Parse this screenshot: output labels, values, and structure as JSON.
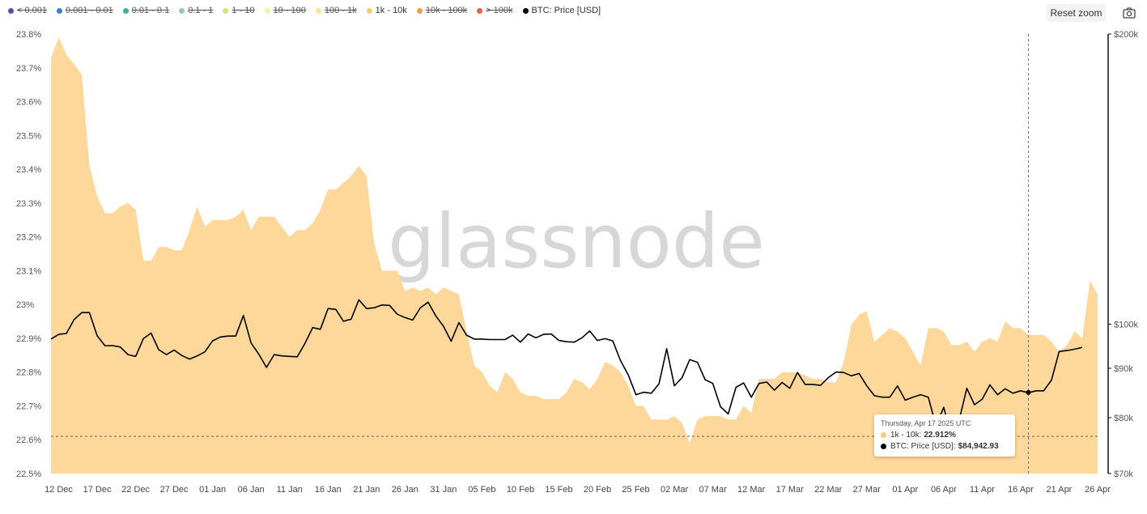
{
  "legend": [
    {
      "label": "< 0.001",
      "color": "#5b4e9e",
      "active": false
    },
    {
      "label": "0.001 - 0.01",
      "color": "#3f7fc1",
      "active": false
    },
    {
      "label": "0.01 - 0.1",
      "color": "#40b0a6",
      "active": false
    },
    {
      "label": "0.1 - 1",
      "color": "#8fd0a2",
      "active": false
    },
    {
      "label": "1 - 10",
      "color": "#c8e58c",
      "active": false
    },
    {
      "label": "10 - 100",
      "color": "#f3f2a0",
      "active": false
    },
    {
      "label": "100 - 1k",
      "color": "#fbe38e",
      "active": false
    },
    {
      "label": "1k - 10k",
      "color": "#fbc97a",
      "active": true
    },
    {
      "label": "10k - 100k",
      "color": "#f29a4d",
      "active": false
    },
    {
      "label": "> 100k",
      "color": "#e4604a",
      "active": false
    },
    {
      "label": "BTC: Price [USD]",
      "color": "#000000",
      "active": true
    }
  ],
  "toolbar": {
    "reset_zoom_label": "Reset zoom",
    "camera_icon": "camera-icon"
  },
  "watermark": "glassnode",
  "tooltip": {
    "date": "Thursday, Apr 17 2025 UTC",
    "series1_label": "1k - 10k:",
    "series1_value": "22.912%",
    "series2_label": "BTC: Price [USD]:",
    "series2_value": "$84,942.93"
  },
  "chart_data": {
    "type": "area",
    "title": "",
    "x_start": "2024-12-11",
    "x_end": "2025-04-26",
    "x_ticks": [
      "12 Dec",
      "17 Dec",
      "22 Dec",
      "27 Dec",
      "01 Jan",
      "06 Jan",
      "11 Jan",
      "16 Jan",
      "21 Jan",
      "26 Jan",
      "31 Jan",
      "05 Feb",
      "10 Feb",
      "15 Feb",
      "20 Feb",
      "25 Feb",
      "02 Mar",
      "07 Mar",
      "12 Mar",
      "17 Mar",
      "22 Mar",
      "27 Mar",
      "01 Apr",
      "06 Apr",
      "11 Apr",
      "16 Apr",
      "21 Apr",
      "26 Apr"
    ],
    "y_left": {
      "min": 22.5,
      "max": 23.8,
      "unit": "%",
      "ticks": [
        "22.5%",
        "22.6%",
        "22.7%",
        "22.8%",
        "22.9%",
        "23%",
        "23.1%",
        "23.2%",
        "23.3%",
        "23.4%",
        "23.5%",
        "23.6%",
        "23.7%",
        "23.8%"
      ]
    },
    "y_right": {
      "scale": "log",
      "min": 70000,
      "max": 200000,
      "ticks": [
        {
          "label": "$70k",
          "value": 70000
        },
        {
          "label": "$80k",
          "value": 80000
        },
        {
          "label": "$90k",
          "value": 90000
        },
        {
          "label": "$100k",
          "value": 100000
        },
        {
          "label": "$200k",
          "value": 200000
        }
      ]
    },
    "series": [
      {
        "name": "1k - 10k",
        "axis": "left",
        "color": "#fdd89a",
        "values": [
          23.73,
          23.79,
          23.74,
          23.71,
          23.68,
          23.41,
          23.32,
          23.27,
          23.27,
          23.29,
          23.3,
          23.28,
          23.13,
          23.13,
          23.17,
          23.17,
          23.16,
          23.16,
          23.22,
          23.29,
          23.23,
          23.25,
          23.25,
          23.25,
          23.26,
          23.28,
          23.22,
          23.26,
          23.26,
          23.26,
          23.23,
          23.2,
          23.22,
          23.22,
          23.24,
          23.28,
          23.34,
          23.34,
          23.36,
          23.38,
          23.41,
          23.38,
          23.18,
          23.1,
          23.1,
          23.1,
          23.04,
          23.05,
          23.04,
          23.05,
          23.03,
          23.05,
          23.04,
          23.03,
          22.92,
          22.82,
          22.8,
          22.76,
          22.74,
          22.8,
          22.78,
          22.74,
          22.73,
          22.73,
          22.72,
          22.72,
          22.72,
          22.74,
          22.78,
          22.77,
          22.75,
          22.78,
          22.83,
          22.82,
          22.8,
          22.76,
          22.7,
          22.7,
          22.66,
          22.66,
          22.66,
          22.67,
          22.65,
          22.59,
          22.66,
          22.67,
          22.67,
          22.67,
          22.66,
          22.66,
          22.7,
          22.68,
          22.78,
          22.78,
          22.78,
          22.8,
          22.8,
          22.8,
          22.79,
          22.78,
          22.78,
          22.77,
          22.77,
          22.83,
          22.94,
          22.97,
          22.98,
          22.89,
          22.91,
          22.93,
          22.92,
          22.9,
          22.86,
          22.82,
          22.93,
          22.93,
          22.92,
          22.88,
          22.88,
          22.89,
          22.86,
          22.89,
          22.9,
          22.89,
          22.95,
          22.93,
          22.93,
          22.91,
          22.91,
          22.91,
          22.89,
          22.86,
          22.88,
          22.92,
          22.9,
          23.07,
          23.03
        ]
      },
      {
        "name": "BTC: Price [USD]",
        "axis": "right",
        "color": "#000000",
        "values": [
          96500,
          97600,
          97800,
          101100,
          102800,
          102800,
          97300,
          95000,
          95000,
          94700,
          93000,
          92600,
          96600,
          97900,
          94100,
          93000,
          94000,
          92800,
          92000,
          92700,
          93600,
          96100,
          97000,
          97200,
          97200,
          102100,
          95600,
          93100,
          90200,
          93000,
          92700,
          92600,
          92500,
          95500,
          99200,
          98800,
          103800,
          103600,
          100700,
          101200,
          106000,
          103800,
          104000,
          104700,
          104600,
          102400,
          101600,
          101000,
          104000,
          105400,
          102000,
          99500,
          96000,
          100400,
          97400,
          96500,
          96500,
          96400,
          96400,
          96400,
          97400,
          95800,
          97700,
          96800,
          97600,
          97700,
          96200,
          95900,
          95800,
          96800,
          98400,
          96200,
          96600,
          96100,
          91700,
          88600,
          84500,
          85000,
          84800,
          86700,
          94300,
          86300,
          88000,
          91900,
          91300,
          87600,
          86800,
          82100,
          80700,
          86000,
          86900,
          84000,
          86800,
          87100,
          85400,
          87000,
          85800,
          89100,
          86600,
          86600,
          86400,
          88000,
          89200,
          89100,
          88400,
          88900,
          86300,
          84300,
          84000,
          84000,
          86300,
          83400,
          84000,
          84500,
          84000,
          78500,
          82000,
          76400,
          79500,
          85800,
          82500,
          83600,
          86500,
          84500,
          85700,
          84800,
          85300,
          84900,
          85300,
          85300,
          87500,
          93700,
          93900,
          94200,
          94600
        ]
      }
    ],
    "hover": {
      "date": "2025-04-17",
      "series1": 22.912,
      "price": 84942.93,
      "crosshair_value": 22.61
    },
    "legend_position": "top-left",
    "grid": false,
    "watermark": "glassnode"
  }
}
